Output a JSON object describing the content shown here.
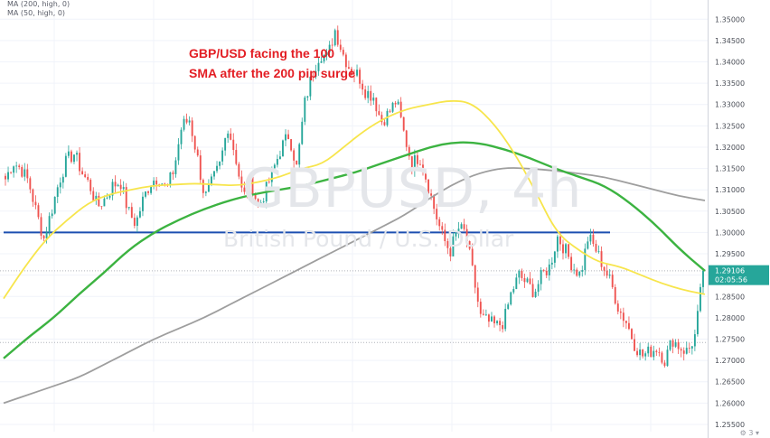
{
  "legend": {
    "ma200": "MA (200, high, 0)",
    "ma50": "MA (50, high, 0)"
  },
  "annotation": "GBP/USD facing the 100 SMA after the 200 pip surge",
  "watermark": {
    "symbol": "GBPUSD, 4h",
    "description": "British Pound / U.S. Dollar"
  },
  "price_tag": {
    "price": "1.29106",
    "countdown": "02:05:56",
    "color": "#26a69a"
  },
  "colors": {
    "up": "#26a69a",
    "down": "#ef5350",
    "ma50": "#f7e54c",
    "ma100": "#3cb341",
    "ma200": "#9e9e9e",
    "support": "#1c4fb0",
    "grid": "#f0f3fa"
  },
  "footer_icon": "settings-icon",
  "chart_data": {
    "type": "candlestick",
    "symbol": "GBPUSD",
    "timeframe": "4h",
    "ylim": [
      1.2533,
      1.3545
    ],
    "y_ticks": [
      "1.35000",
      "1.34500",
      "1.34000",
      "1.33500",
      "1.33000",
      "1.32500",
      "1.32000",
      "1.31500",
      "1.31000",
      "1.30500",
      "1.30000",
      "1.29500",
      "1.29000",
      "1.28500",
      "1.28000",
      "1.27500",
      "1.27000",
      "1.26500",
      "1.26000",
      "1.25500"
    ],
    "support_level": 1.3,
    "dotted_levels": [
      1.291,
      1.2742
    ],
    "current_price": 1.29106,
    "candle_path": [
      1.3125,
      1.3165,
      1.315,
      1.312,
      1.305,
      1.2985,
      1.305,
      1.312,
      1.317,
      1.3185,
      1.314,
      1.311,
      1.306,
      1.308,
      1.311,
      1.312,
      1.305,
      1.302,
      1.308,
      1.312,
      1.313,
      1.31,
      1.315,
      1.325,
      1.3265,
      1.318,
      1.308,
      1.312,
      1.316,
      1.325,
      1.318,
      1.308,
      1.312,
      1.306,
      1.31,
      1.315,
      1.32,
      1.323,
      1.315,
      1.33,
      1.337,
      1.342,
      1.341,
      1.3475,
      1.342,
      1.338,
      1.337,
      1.333,
      1.332,
      1.326,
      1.328,
      1.331,
      1.323,
      1.316,
      1.318,
      1.312,
      1.305,
      1.299,
      1.2955,
      1.301,
      1.3,
      1.29,
      1.28,
      1.279,
      1.278,
      1.279,
      1.286,
      1.29,
      1.288,
      1.286,
      1.29,
      1.292,
      1.299,
      1.296,
      1.292,
      1.29,
      1.299,
      1.296,
      1.292,
      1.288,
      1.282,
      1.279,
      1.274,
      1.271,
      1.272,
      1.273,
      1.27,
      1.275,
      1.273,
      1.272,
      1.276,
      1.291
    ],
    "ma50": [
      1.2845,
      1.292,
      1.2985,
      1.303,
      1.307,
      1.309,
      1.31,
      1.311,
      1.3112,
      1.3115,
      1.3112,
      1.311,
      1.3118,
      1.313,
      1.315,
      1.316,
      1.32,
      1.324,
      1.327,
      1.329,
      1.33,
      1.331,
      1.3305,
      1.326,
      1.319,
      1.31,
      1.3,
      1.296,
      1.293,
      1.292,
      1.29,
      1.288,
      1.2865,
      1.2855
    ],
    "ma100": [
      1.2705,
      1.2755,
      1.28,
      1.2855,
      1.2905,
      1.296,
      1.3,
      1.303,
      1.3055,
      1.3075,
      1.309,
      1.31,
      1.311,
      1.3125,
      1.314,
      1.316,
      1.318,
      1.32,
      1.3212,
      1.321,
      1.3195,
      1.3175,
      1.315,
      1.313,
      1.311,
      1.307,
      1.302,
      1.296,
      1.291
    ],
    "ma200": [
      1.26,
      1.262,
      1.264,
      1.266,
      1.269,
      1.272,
      1.275,
      1.2775,
      1.28,
      1.283,
      1.286,
      1.289,
      1.292,
      1.295,
      1.298,
      1.301,
      1.304,
      1.308,
      1.3115,
      1.314,
      1.3152,
      1.315,
      1.3145,
      1.3138,
      1.313,
      1.3115,
      1.31,
      1.3085,
      1.3075
    ]
  }
}
